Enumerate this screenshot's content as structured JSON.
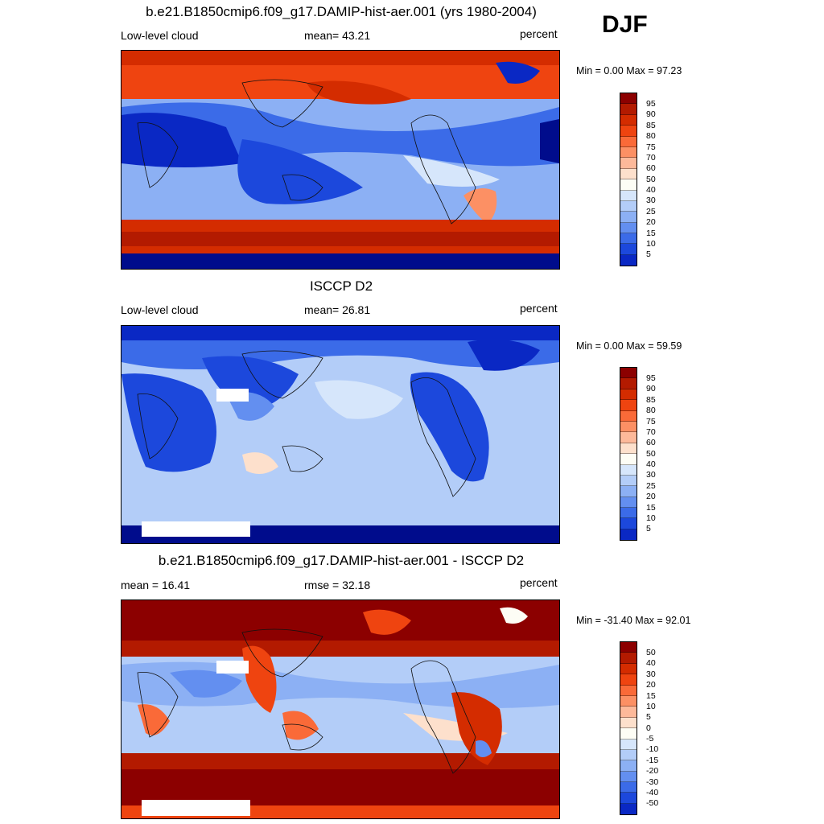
{
  "season": "DJF",
  "panels": [
    {
      "title": "b.e21.B1850cmip6.f09_g17.DAMIP-hist-aer.001 (yrs 1980-2004)",
      "left_text": "Low-level cloud",
      "mid_text": "mean=  43.21",
      "units": "percent",
      "minmax": "Min =   0.00 Max =  97.23",
      "field": "model"
    },
    {
      "title": "ISCCP D2",
      "left_text": "Low-level cloud",
      "mid_text": "mean=  26.81",
      "units": "percent",
      "minmax": "Min =   0.00 Max =  59.59",
      "field": "obs"
    },
    {
      "title": "b.e21.B1850cmip6.f09_g17.DAMIP-hist-aer.001 - ISCCP D2",
      "left_text": "mean =  16.41",
      "mid_text": "rmse =  32.18",
      "units": "percent",
      "minmax": "Min = -31.40 Max =  92.01",
      "field": "diff"
    }
  ],
  "colorbar_abs": {
    "labels": [
      "95",
      "90",
      "85",
      "80",
      "75",
      "70",
      "60",
      "50",
      "40",
      "30",
      "25",
      "20",
      "15",
      "10",
      "5"
    ],
    "colors": [
      "#8c0000",
      "#b31a00",
      "#d42c00",
      "#ef4410",
      "#fa6a38",
      "#fc9064",
      "#fdb99a",
      "#fde0cc",
      "#fdfdf5",
      "#d6e6fb",
      "#b3cdf8",
      "#8cb0f4",
      "#638ff0",
      "#3b6be8",
      "#1c48dc",
      "#0a28c4",
      "#000c8c"
    ]
  },
  "colorbar_diff": {
    "labels": [
      "50",
      "40",
      "30",
      "20",
      "15",
      "10",
      "5",
      "0",
      "-5",
      "-10",
      "-15",
      "-20",
      "-30",
      "-40",
      "-50"
    ],
    "colors": [
      "#8c0000",
      "#b31a00",
      "#d42c00",
      "#ef4410",
      "#fa6a38",
      "#fc9064",
      "#fdb99a",
      "#fde0cc",
      "#fdfdf5",
      "#d6e6fb",
      "#b3cdf8",
      "#8cb0f4",
      "#638ff0",
      "#3b6be8",
      "#1c48dc",
      "#0a28c4",
      "#000c8c"
    ]
  }
}
